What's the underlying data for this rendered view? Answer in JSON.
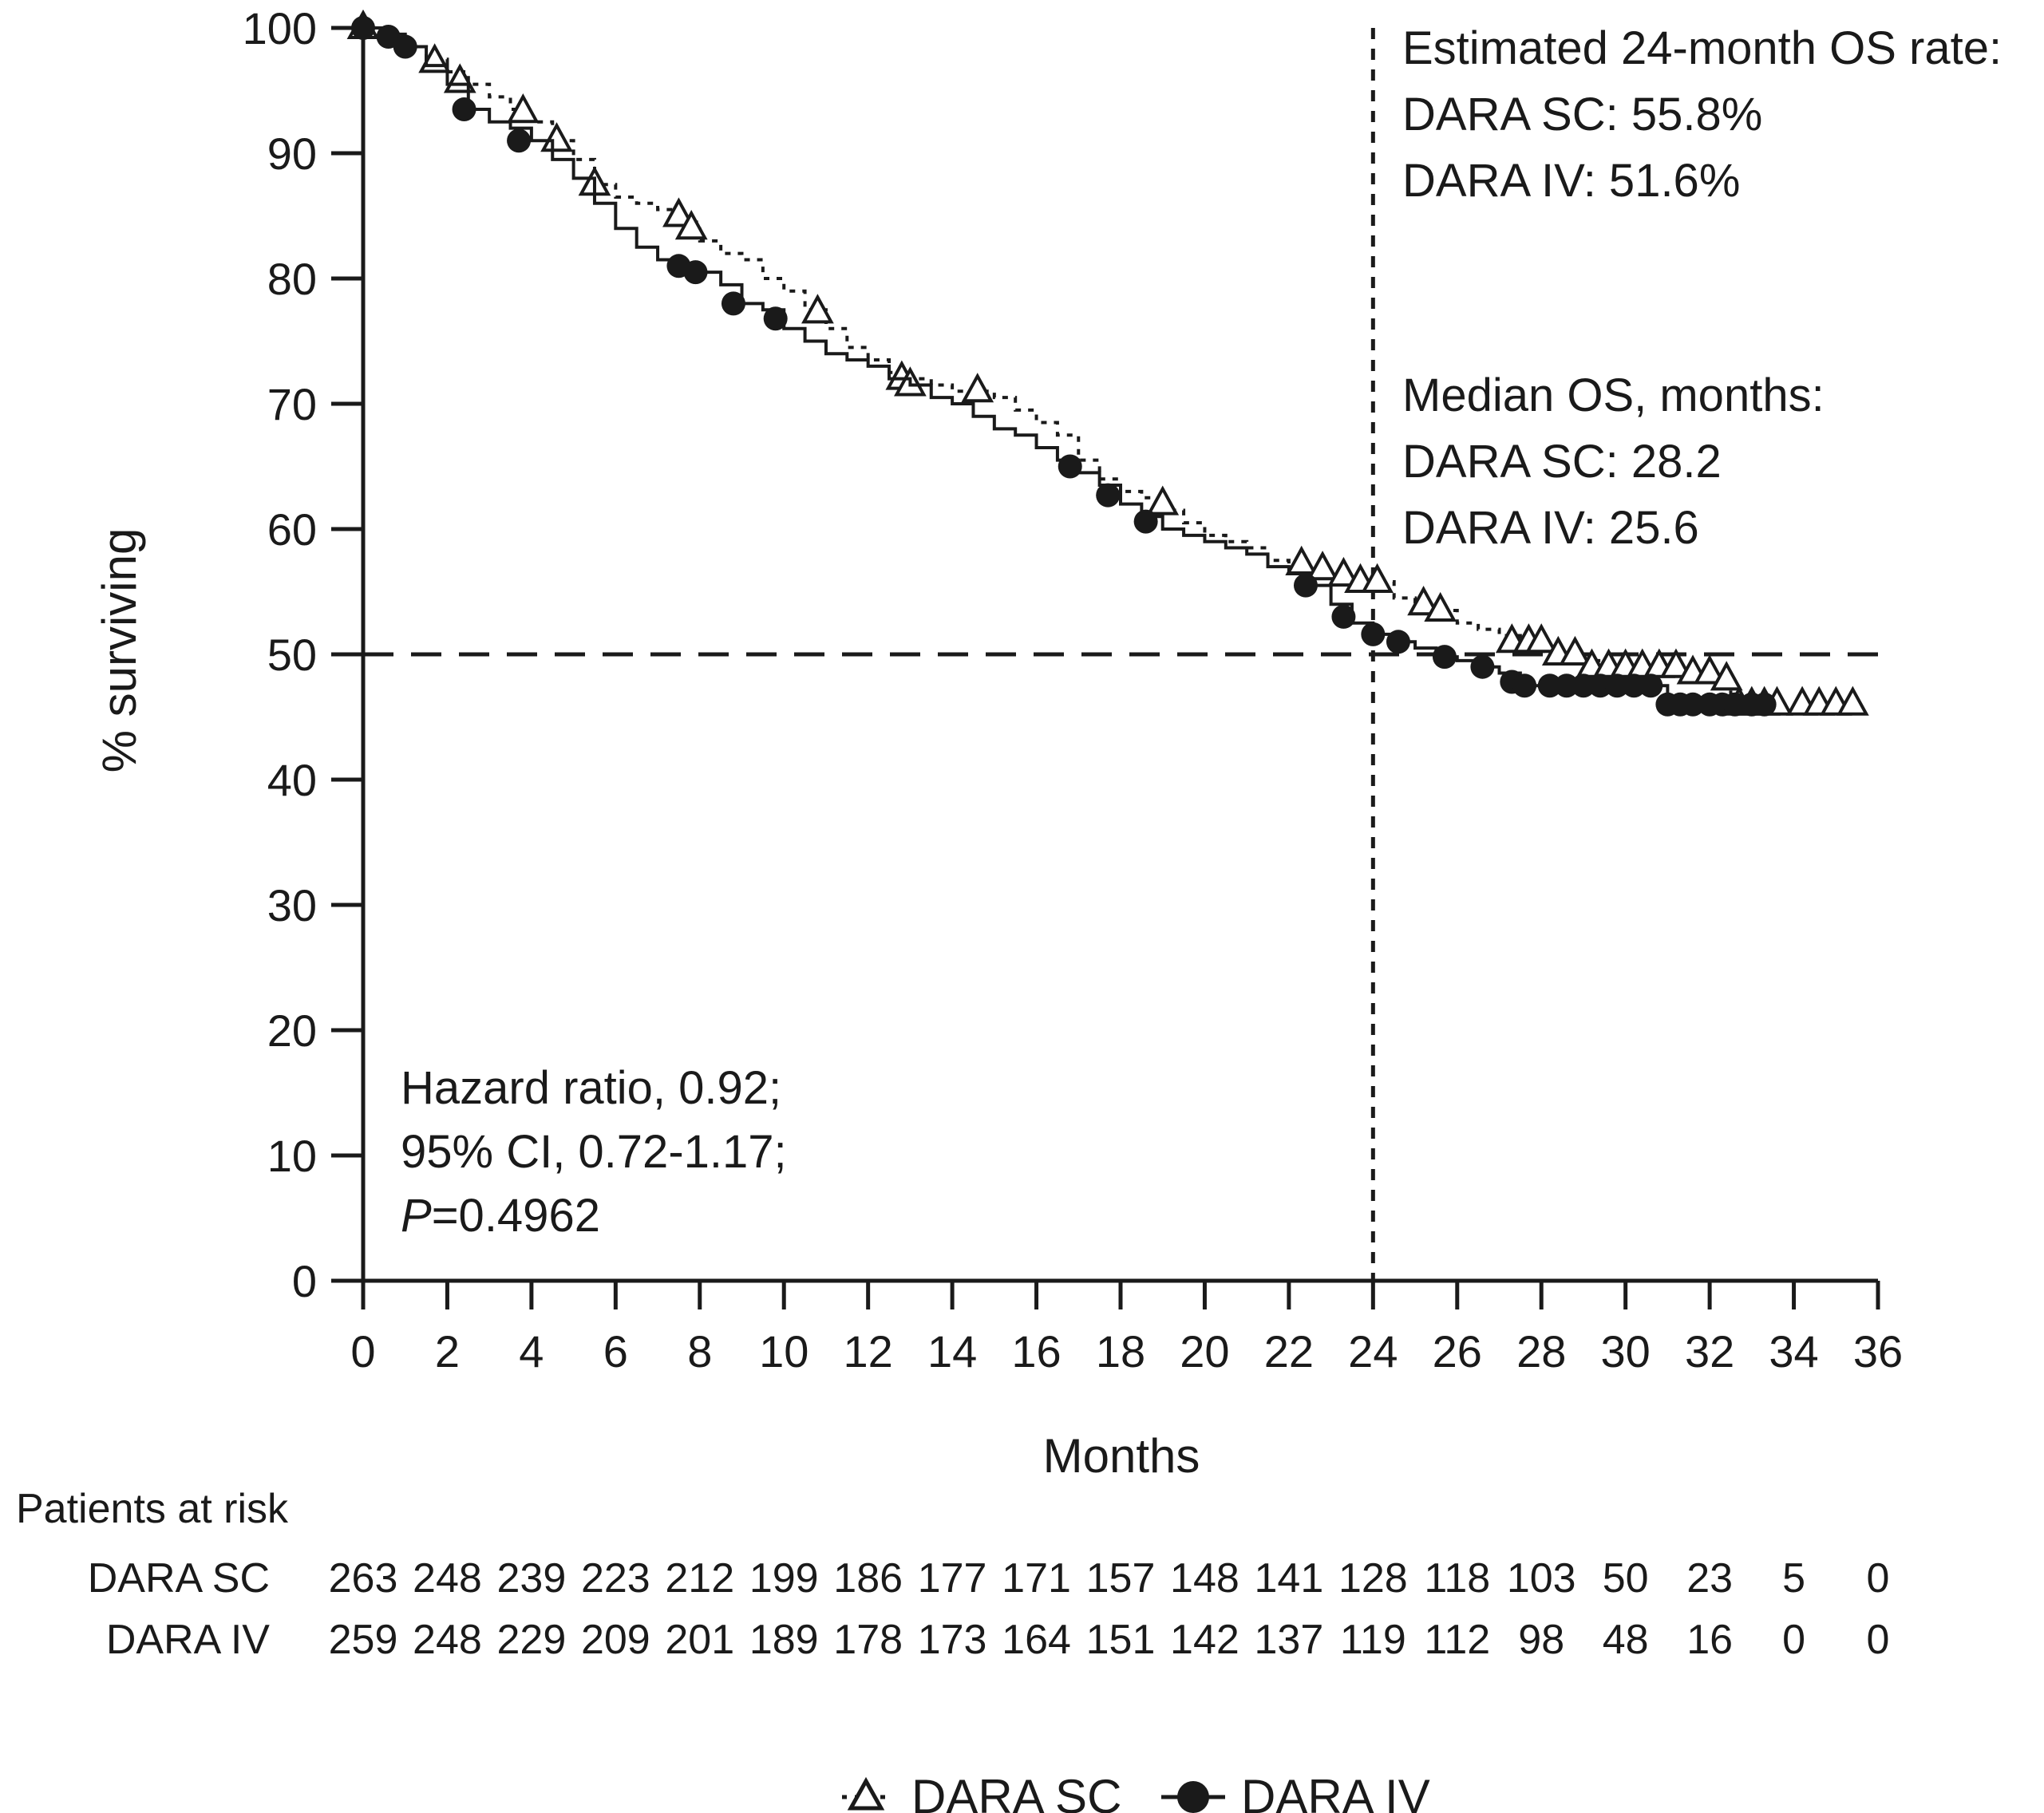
{
  "chart_data": {
    "type": "line",
    "subtype": "kaplan-meier",
    "xlabel": "Months",
    "ylabel": "% surviving",
    "xlim": [
      0,
      36
    ],
    "ylim": [
      0,
      100
    ],
    "x_ticks": [
      0,
      2,
      4,
      6,
      8,
      10,
      12,
      14,
      16,
      18,
      20,
      22,
      24,
      26,
      28,
      30,
      32,
      34,
      36
    ],
    "y_ticks": [
      0,
      10,
      20,
      30,
      40,
      50,
      60,
      70,
      80,
      90,
      100
    ],
    "grid": false,
    "reference_lines": {
      "horizontal_y": 50,
      "vertical_x": 24
    },
    "series": [
      {
        "name": "DARA SC",
        "marker": "open-triangle",
        "line_style": "dotted",
        "points": [
          [
            0,
            100
          ],
          [
            0.5,
            99.2
          ],
          [
            1.0,
            98.5
          ],
          [
            1.5,
            97.5
          ],
          [
            2.0,
            96.5
          ],
          [
            2.5,
            95.5
          ],
          [
            3.0,
            94.5
          ],
          [
            3.5,
            93.5
          ],
          [
            4.0,
            92.5
          ],
          [
            4.5,
            91.0
          ],
          [
            5.0,
            89.5
          ],
          [
            5.5,
            87.5
          ],
          [
            6.0,
            86.5
          ],
          [
            6.5,
            86.0
          ],
          [
            7.0,
            85.5
          ],
          [
            7.5,
            84.5
          ],
          [
            8.0,
            83.0
          ],
          [
            8.5,
            82.0
          ],
          [
            9.0,
            81.5
          ],
          [
            9.5,
            80.0
          ],
          [
            10.0,
            79.0
          ],
          [
            10.5,
            77.5
          ],
          [
            11.0,
            76.0
          ],
          [
            11.5,
            74.5
          ],
          [
            12.0,
            73.5
          ],
          [
            12.5,
            72.5
          ],
          [
            13.0,
            72.0
          ],
          [
            13.5,
            71.5
          ],
          [
            14.0,
            71.0
          ],
          [
            14.5,
            71.0
          ],
          [
            15.0,
            70.5
          ],
          [
            15.5,
            69.5
          ],
          [
            16.0,
            68.5
          ],
          [
            16.5,
            67.5
          ],
          [
            17.0,
            65.5
          ],
          [
            17.5,
            64.0
          ],
          [
            18.0,
            63.0
          ],
          [
            18.5,
            62.5
          ],
          [
            19.0,
            61.5
          ],
          [
            19.5,
            60.5
          ],
          [
            20.0,
            59.5
          ],
          [
            20.5,
            59.0
          ],
          [
            21.0,
            58.5
          ],
          [
            21.5,
            57.5
          ],
          [
            22.0,
            57.0
          ],
          [
            22.5,
            56.5
          ],
          [
            23.0,
            56.0
          ],
          [
            23.5,
            56.0
          ],
          [
            24.0,
            55.8
          ],
          [
            24.5,
            54.5
          ],
          [
            25.0,
            54.0
          ],
          [
            25.5,
            53.5
          ],
          [
            26.0,
            52.5
          ],
          [
            26.5,
            52.0
          ],
          [
            27.0,
            51.5
          ],
          [
            27.5,
            51.0
          ],
          [
            28.0,
            50.5
          ],
          [
            28.5,
            50.0
          ],
          [
            29.0,
            49.5
          ],
          [
            29.5,
            49.0
          ],
          [
            30.0,
            49.0
          ],
          [
            30.5,
            49.0
          ],
          [
            31.0,
            48.5
          ],
          [
            31.5,
            48.5
          ],
          [
            32.0,
            48.0
          ],
          [
            32.5,
            46.0
          ],
          [
            33.0,
            46.0
          ],
          [
            33.5,
            46.0
          ],
          [
            34.0,
            46.0
          ],
          [
            34.5,
            46.0
          ],
          [
            35.0,
            46.0
          ],
          [
            35.5,
            46.0
          ]
        ],
        "censored": [
          [
            0,
            100
          ],
          [
            1.7,
            97.3
          ],
          [
            2.3,
            95.7
          ],
          [
            3.8,
            93.3
          ],
          [
            4.6,
            91.0
          ],
          [
            5.5,
            87.5
          ],
          [
            7.5,
            85.0
          ],
          [
            7.8,
            84.0
          ],
          [
            10.8,
            77.3
          ],
          [
            12.8,
            72.0
          ],
          [
            13.0,
            71.5
          ],
          [
            14.6,
            71.0
          ],
          [
            19.0,
            62.0
          ],
          [
            22.3,
            57.2
          ],
          [
            22.8,
            56.8
          ],
          [
            23.3,
            56.3
          ],
          [
            23.7,
            55.8
          ],
          [
            24.1,
            55.8
          ],
          [
            25.2,
            54.0
          ],
          [
            25.6,
            53.5
          ],
          [
            27.3,
            51.0
          ],
          [
            27.7,
            51.0
          ],
          [
            28.0,
            51.0
          ],
          [
            28.4,
            50.0
          ],
          [
            28.8,
            50.0
          ],
          [
            29.2,
            49.0
          ],
          [
            29.6,
            49.0
          ],
          [
            30.0,
            49.0
          ],
          [
            30.4,
            49.0
          ],
          [
            30.8,
            49.0
          ],
          [
            31.2,
            49.0
          ],
          [
            31.6,
            48.5
          ],
          [
            32.0,
            48.5
          ],
          [
            32.4,
            48.0
          ],
          [
            32.7,
            46.0
          ],
          [
            33.0,
            46.0
          ],
          [
            33.3,
            46.0
          ],
          [
            33.6,
            46.0
          ],
          [
            34.2,
            46.0
          ],
          [
            34.6,
            46.0
          ],
          [
            35.0,
            46.0
          ],
          [
            35.4,
            46.0
          ]
        ]
      },
      {
        "name": "DARA IV",
        "marker": "filled-circle",
        "line_style": "solid",
        "points": [
          [
            0,
            100
          ],
          [
            0.5,
            99.5
          ],
          [
            1.0,
            98.5
          ],
          [
            1.5,
            97.0
          ],
          [
            2.0,
            95.5
          ],
          [
            2.5,
            93.5
          ],
          [
            3.0,
            92.5
          ],
          [
            3.5,
            92.0
          ],
          [
            4.0,
            91.0
          ],
          [
            4.5,
            89.5
          ],
          [
            5.0,
            88.0
          ],
          [
            5.5,
            86.0
          ],
          [
            6.0,
            84.0
          ],
          [
            6.5,
            82.5
          ],
          [
            7.0,
            81.5
          ],
          [
            7.5,
            81.0
          ],
          [
            8.0,
            80.5
          ],
          [
            8.5,
            79.5
          ],
          [
            9.0,
            78.0
          ],
          [
            9.5,
            77.5
          ],
          [
            10.0,
            76.0
          ],
          [
            10.5,
            75.0
          ],
          [
            11.0,
            74.0
          ],
          [
            11.5,
            73.5
          ],
          [
            12.0,
            73.0
          ],
          [
            12.5,
            72.0
          ],
          [
            13.0,
            71.5
          ],
          [
            13.5,
            70.5
          ],
          [
            14.0,
            70.0
          ],
          [
            14.5,
            69.0
          ],
          [
            15.0,
            68.0
          ],
          [
            15.5,
            67.5
          ],
          [
            16.0,
            66.5
          ],
          [
            16.5,
            65.5
          ],
          [
            17.0,
            64.5
          ],
          [
            17.5,
            63.5
          ],
          [
            18.0,
            62.0
          ],
          [
            18.5,
            61.0
          ],
          [
            19.0,
            60.0
          ],
          [
            19.5,
            59.5
          ],
          [
            20.0,
            59.0
          ],
          [
            20.5,
            58.5
          ],
          [
            21.0,
            58.0
          ],
          [
            21.5,
            57.0
          ],
          [
            22.0,
            56.5
          ],
          [
            22.5,
            55.5
          ],
          [
            23.0,
            54.0
          ],
          [
            23.5,
            52.5
          ],
          [
            24.0,
            51.6
          ],
          [
            24.5,
            51.0
          ],
          [
            25.0,
            50.5
          ],
          [
            25.5,
            49.8
          ],
          [
            26.0,
            49.5
          ],
          [
            26.5,
            49.0
          ],
          [
            27.0,
            48.5
          ],
          [
            27.5,
            47.5
          ],
          [
            28.0,
            47.5
          ],
          [
            28.5,
            47.5
          ],
          [
            29.0,
            47.5
          ],
          [
            29.5,
            47.5
          ],
          [
            30.0,
            47.5
          ],
          [
            30.5,
            47.5
          ],
          [
            31.0,
            46.0
          ],
          [
            31.5,
            46.0
          ],
          [
            32.0,
            46.0
          ],
          [
            32.5,
            46.0
          ],
          [
            33.0,
            46.0
          ],
          [
            33.5,
            46.0
          ]
        ],
        "censored": [
          [
            0,
            100
          ],
          [
            0.6,
            99.3
          ],
          [
            1.0,
            98.5
          ],
          [
            2.4,
            93.5
          ],
          [
            3.7,
            91.0
          ],
          [
            7.5,
            81.0
          ],
          [
            7.9,
            80.5
          ],
          [
            8.8,
            78.0
          ],
          [
            9.8,
            76.8
          ],
          [
            16.8,
            65.0
          ],
          [
            17.7,
            62.7
          ],
          [
            18.6,
            60.6
          ],
          [
            22.4,
            55.5
          ],
          [
            23.3,
            53.0
          ],
          [
            24.0,
            51.6
          ],
          [
            24.6,
            51.0
          ],
          [
            25.7,
            49.8
          ],
          [
            26.6,
            49.0
          ],
          [
            27.3,
            47.8
          ],
          [
            27.6,
            47.5
          ],
          [
            28.2,
            47.5
          ],
          [
            28.6,
            47.5
          ],
          [
            29.0,
            47.5
          ],
          [
            29.4,
            47.5
          ],
          [
            29.8,
            47.5
          ],
          [
            30.2,
            47.5
          ],
          [
            30.6,
            47.5
          ],
          [
            31.0,
            46.0
          ],
          [
            31.3,
            46.0
          ],
          [
            31.6,
            46.0
          ],
          [
            32.0,
            46.0
          ],
          [
            32.3,
            46.0
          ],
          [
            32.6,
            46.0
          ],
          [
            33.0,
            46.0
          ],
          [
            33.3,
            46.0
          ]
        ]
      }
    ],
    "annotations": {
      "os_rate": [
        "Estimated 24-month OS rate:",
        "DARA SC: 55.8%",
        "DARA IV: 51.6%"
      ],
      "median_os": [
        "Median OS, months:",
        "DARA SC: 28.2",
        "DARA IV: 25.6"
      ],
      "hazard": {
        "line1": "Hazard ratio, 0.92;",
        "line2": "95% CI, 0.72-1.17;",
        "p_symbol": "P",
        "p_value": "=0.4962"
      }
    },
    "risk_table": {
      "title": "Patients at risk",
      "rows": [
        {
          "label": "DARA SC",
          "values": [
            263,
            248,
            239,
            223,
            212,
            199,
            186,
            177,
            171,
            157,
            148,
            141,
            128,
            118,
            103,
            50,
            23,
            5,
            0
          ]
        },
        {
          "label": "DARA IV",
          "values": [
            259,
            248,
            229,
            209,
            201,
            189,
            178,
            173,
            164,
            151,
            142,
            137,
            119,
            112,
            98,
            48,
            16,
            0,
            0
          ]
        }
      ]
    },
    "legend": {
      "position": "bottom-center",
      "items": [
        "DARA SC",
        "DARA IV"
      ]
    }
  }
}
